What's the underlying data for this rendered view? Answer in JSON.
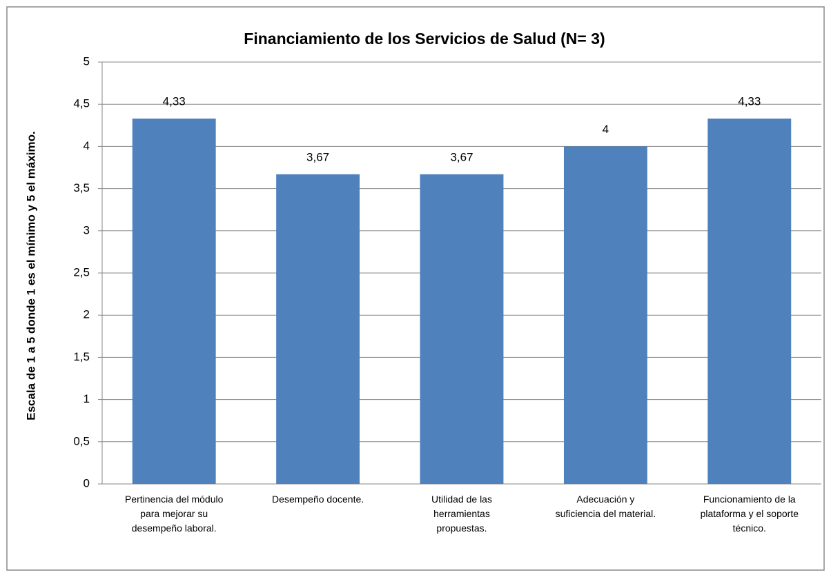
{
  "chart_data": {
    "type": "bar",
    "title": "Financiamiento de los Servicios de Salud (N= 3)",
    "y_label": "Escala  de 1 a 5 donde 1 es el mínimo y 5 el máximo.",
    "categories": [
      "Pertinencia del módulo\npara mejorar su\ndesempeño laboral.",
      "Desempeño docente.",
      "Utilidad de las\nherramientas\npropuestas.",
      "Adecuación y\nsuficiencia del material.",
      "Funcionamiento de la\nplataforma y el soporte\ntécnico."
    ],
    "values": [
      4.33,
      3.67,
      3.67,
      4,
      4.33
    ],
    "value_labels": [
      "4,33",
      "3,67",
      "3,67",
      "4",
      "4,33"
    ],
    "color": "#4f81bd",
    "ylim": [
      0,
      5
    ],
    "yticks": [
      0,
      {
        "value": 0.5,
        "label": "0,5"
      },
      1,
      {
        "value": 1.5,
        "label": "1,5"
      },
      2,
      {
        "value": 2.5,
        "label": "2,5"
      },
      3,
      {
        "value": 3.5,
        "label": "3,5"
      },
      4,
      {
        "value": 4.5,
        "label": "4,5"
      },
      5
    ],
    "grid": true
  }
}
